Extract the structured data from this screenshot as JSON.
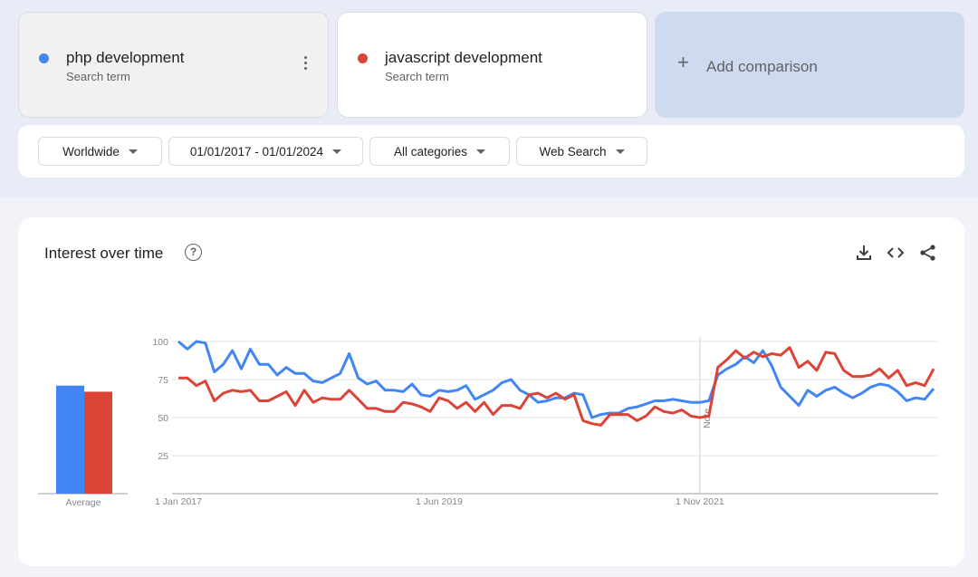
{
  "terms": [
    {
      "name": "php development",
      "subtitle": "Search term",
      "color": "#4285f4"
    },
    {
      "name": "javascript development",
      "subtitle": "Search term",
      "color": "#db4437"
    }
  ],
  "add_comparison": {
    "label": "Add comparison",
    "icon": "plus-icon"
  },
  "filters": {
    "region": "Worldwide",
    "date_range": "01/01/2017 - 01/01/2024",
    "category": "All categories",
    "search_type": "Web Search"
  },
  "interest_card": {
    "title": "Interest over time",
    "help_icon": "?",
    "tools": [
      "download-icon",
      "embed-icon",
      "share-icon"
    ]
  },
  "chart_data": {
    "type": "line",
    "title": "",
    "ylim": [
      0,
      100
    ],
    "yticks": [
      25,
      50,
      75,
      100
    ],
    "grid": true,
    "x_ticks": [
      {
        "date": "2017-01",
        "label": "1 Jan 2017"
      },
      {
        "date": "2019-06",
        "label": "1 Jun 2019"
      },
      {
        "date": "2021-11",
        "label": "1 Nov 2021"
      }
    ],
    "note": {
      "date": "2021-11",
      "label": "Note"
    },
    "average_label": "Average",
    "averages": [
      71,
      67
    ],
    "x": [
      "2017-01",
      "2017-02",
      "2017-03",
      "2017-04",
      "2017-05",
      "2017-06",
      "2017-07",
      "2017-08",
      "2017-09",
      "2017-10",
      "2017-11",
      "2017-12",
      "2018-01",
      "2018-02",
      "2018-03",
      "2018-04",
      "2018-05",
      "2018-06",
      "2018-07",
      "2018-08",
      "2018-09",
      "2018-10",
      "2018-11",
      "2018-12",
      "2019-01",
      "2019-02",
      "2019-03",
      "2019-04",
      "2019-05",
      "2019-06",
      "2019-07",
      "2019-08",
      "2019-09",
      "2019-10",
      "2019-11",
      "2019-12",
      "2020-01",
      "2020-02",
      "2020-03",
      "2020-04",
      "2020-05",
      "2020-06",
      "2020-07",
      "2020-08",
      "2020-09",
      "2020-10",
      "2020-11",
      "2020-12",
      "2021-01",
      "2021-02",
      "2021-03",
      "2021-04",
      "2021-05",
      "2021-06",
      "2021-07",
      "2021-08",
      "2021-09",
      "2021-10",
      "2021-11",
      "2021-12",
      "2022-01",
      "2022-02",
      "2022-03",
      "2022-04",
      "2022-05",
      "2022-06",
      "2022-07",
      "2022-08",
      "2022-09",
      "2022-10",
      "2022-11",
      "2022-12",
      "2023-01",
      "2023-02",
      "2023-03",
      "2023-04",
      "2023-05",
      "2023-06",
      "2023-07",
      "2023-08",
      "2023-09",
      "2023-10",
      "2023-11",
      "2023-12",
      "2024-01"
    ],
    "series": [
      {
        "name": "php development",
        "color": "#4285f4",
        "values": [
          100,
          95,
          100,
          99,
          80,
          85,
          94,
          82,
          95,
          85,
          85,
          78,
          83,
          79,
          79,
          74,
          73,
          76,
          79,
          92,
          76,
          72,
          74,
          68,
          68,
          67,
          72,
          65,
          64,
          68,
          67,
          68,
          71,
          62,
          65,
          68,
          73,
          75,
          68,
          65,
          60,
          61,
          63,
          63,
          66,
          65,
          50,
          52,
          53,
          53,
          56,
          57,
          59,
          61,
          61,
          62,
          61,
          60,
          60,
          61,
          78,
          82,
          85,
          90,
          86,
          94,
          84,
          70,
          64,
          58,
          68,
          64,
          68,
          70,
          66,
          63,
          66,
          70,
          72,
          71,
          67,
          61,
          63,
          62,
          69
        ]
      },
      {
        "name": "javascript development",
        "color": "#db4437",
        "values": [
          76,
          76,
          71,
          74,
          61,
          66,
          68,
          67,
          68,
          61,
          61,
          64,
          67,
          58,
          68,
          60,
          63,
          62,
          62,
          68,
          62,
          56,
          56,
          54,
          54,
          60,
          59,
          57,
          54,
          63,
          61,
          56,
          60,
          54,
          60,
          52,
          58,
          58,
          56,
          65,
          66,
          63,
          66,
          62,
          65,
          48,
          46,
          45,
          52,
          52,
          52,
          48,
          51,
          57,
          54,
          53,
          55,
          51,
          50,
          51,
          83,
          88,
          94,
          89,
          93,
          90,
          92,
          91,
          96,
          83,
          87,
          81,
          93,
          92,
          81,
          77,
          77,
          78,
          82,
          76,
          81,
          71,
          73,
          71,
          82
        ]
      }
    ]
  }
}
